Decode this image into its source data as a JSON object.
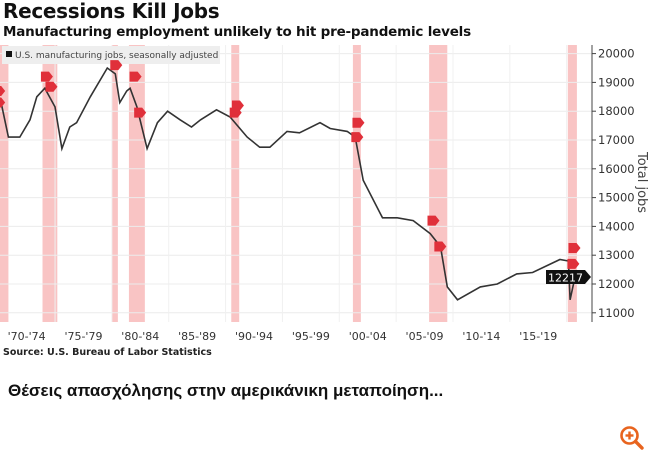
{
  "chart_data": {
    "type": "line",
    "title": "Recessions Kill Jobs",
    "subtitle": "Manufacturing employment unlikely to hit pre-pandemic levels",
    "ylabel": "Total jobs",
    "xlabel": "",
    "ylim": [
      10700,
      20300
    ],
    "xlim": [
      1970.16,
      2022.2
    ],
    "y_ticks": [
      11000,
      12000,
      13000,
      14000,
      15000,
      16000,
      17000,
      18000,
      19000,
      20000
    ],
    "x_tick_labels": [
      "'70-'74",
      "'75-'79",
      "'80-'84",
      "'85-'89",
      "'90-'94",
      "'95-'99",
      "'00-'04",
      "'05-'09",
      "'10-'14",
      "'15-'19"
    ],
    "x_tick_centers": [
      1972.5,
      1977.5,
      1982.5,
      1987.5,
      1992.5,
      1997.5,
      2002.5,
      2007.5,
      2012.5,
      2017.5
    ],
    "grid": true,
    "legend": {
      "placement": "top-left",
      "entries": [
        "U.S. manufacturing jobs, seasonally adjusted"
      ]
    },
    "series": [
      {
        "name": "U.S. manufacturing jobs, seasonally adjusted",
        "color": "#333333",
        "x": [
          1969.5,
          1970.2,
          1970.9,
          1971.9,
          1972.8,
          1973.4,
          1974.1,
          1975.0,
          1975.6,
          1976.3,
          1976.9,
          1978.1,
          1979.6,
          1980.3,
          1980.7,
          1981.3,
          1981.6,
          1982.2,
          1983.1,
          1984.0,
          1984.9,
          1986.0,
          1987.0,
          1987.8,
          1989.2,
          1990.4,
          1991.9,
          1993.0,
          1993.9,
          1995.4,
          1996.5,
          1998.3,
          1999.2,
          2000.7,
          2001.4,
          2002.1,
          2003.8,
          2005.1,
          2006.5,
          2008.0,
          2008.9,
          2009.5,
          2010.4,
          2012.4,
          2013.9,
          2015.6,
          2017.0,
          2019.4,
          2020.15,
          2020.3,
          2020.6,
          2021.0
        ],
        "values": [
          18800,
          18400,
          17100,
          17100,
          17700,
          18500,
          18800,
          18150,
          16700,
          17450,
          17600,
          18500,
          19500,
          19300,
          18300,
          18700,
          18800,
          18150,
          16700,
          17600,
          18000,
          17700,
          17450,
          17700,
          18050,
          17800,
          17100,
          16750,
          16750,
          17300,
          17250,
          17600,
          17400,
          17300,
          17100,
          15600,
          14300,
          14300,
          14200,
          13750,
          13300,
          11900,
          11450,
          11900,
          12000,
          12350,
          12400,
          12850,
          12800,
          11450,
          12000,
          12217
        ]
      }
    ],
    "recession_bands": [
      [
        1969.9,
        1970.9
      ],
      [
        1973.9,
        1975.2
      ],
      [
        1980.0,
        1980.5
      ],
      [
        1981.5,
        1982.9
      ],
      [
        1990.5,
        1991.2
      ],
      [
        2001.2,
        2001.9
      ],
      [
        2007.9,
        2009.5
      ],
      [
        2020.1,
        2020.9
      ]
    ],
    "band_color": "#f7b5b5",
    "marker_color": "#e0303a",
    "last_value_label": "12217",
    "source": "Source: U.S. Bureau of Labor Statistics"
  },
  "caption": "Θέσεις απασχόλησης  στην αμερικάνικη μεταποίηση...",
  "zoom_icon": "zoom-in-icon",
  "zoom_color": "#e8641e"
}
